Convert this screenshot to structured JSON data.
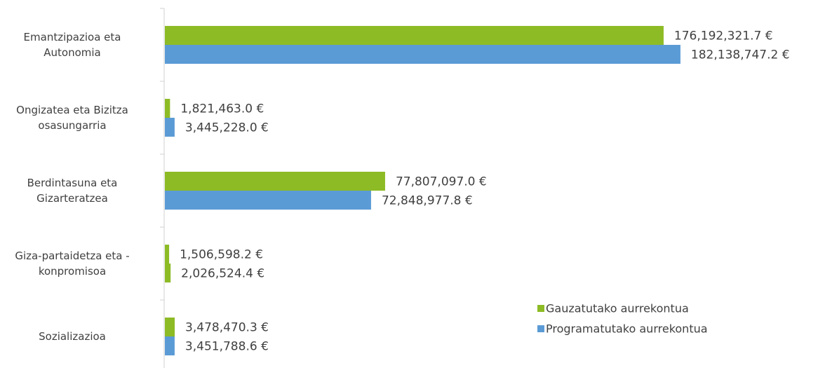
{
  "chart_data": {
    "type": "hbar",
    "categories": [
      "Emantzipazioa eta\nAutonomia",
      "Ongizatea eta Bizitza\nosasungarria",
      "Berdintasuna eta\nGizarteratzea",
      "Giza-partaidetza eta -\nkonpromisoa",
      "Sozializazioa"
    ],
    "series": [
      {
        "name": "Gauzatutako aurrekontua",
        "color": "#8dbb25",
        "values": [
          176192321.7,
          1821463.0,
          77807097.0,
          1506598.2,
          3478470.3
        ],
        "value_labels": [
          "176,192,321.7 €",
          "1,821,463.0 €",
          "77,807,097.0 €",
          "1,506,598.2 €",
          "3,478,470.3 €"
        ]
      },
      {
        "name": "Programatutako aurrekontua",
        "color": "#5b9bd5",
        "colors": [
          "#5b9bd5",
          "#5b9bd5",
          "#5b9bd5",
          "#8dbb25",
          "#5b9bd5"
        ],
        "values": [
          182138747.2,
          3445228.0,
          72848977.8,
          2026524.4,
          3451788.6
        ],
        "value_labels": [
          "182,138,747.2 €",
          "3,445,228.0 €",
          "72,848,977.8 €",
          "2,026,524.4 €",
          "3,451,788.6 €"
        ]
      }
    ],
    "xlim": [
      0,
      200000000
    ],
    "legend": "bottom-right"
  }
}
